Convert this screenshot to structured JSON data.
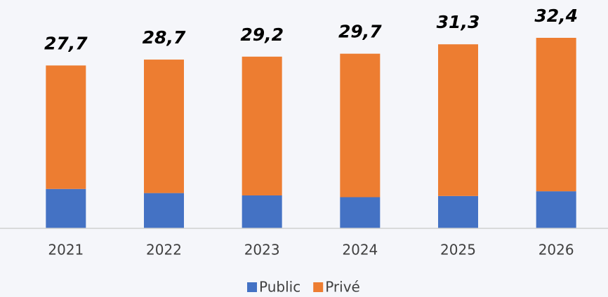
{
  "chart_data": {
    "type": "stacked_bar",
    "categories": [
      "2021",
      "2022",
      "2023",
      "2024",
      "2025",
      "2026"
    ],
    "series": [
      {
        "name": "Public",
        "color": "#4472c4",
        "values": [
          6.7,
          6.0,
          5.6,
          5.3,
          5.5,
          6.3
        ]
      },
      {
        "name": "Privé",
        "color": "#ed7d31",
        "values": [
          21.0,
          22.7,
          23.6,
          24.4,
          25.8,
          26.1
        ]
      }
    ],
    "totals": [
      27.7,
      28.7,
      29.2,
      29.7,
      31.3,
      32.4
    ],
    "total_labels": [
      "27,7",
      "28,7",
      "29,2",
      "29,7",
      "31,3",
      "32,4"
    ],
    "legend": "bottom"
  }
}
